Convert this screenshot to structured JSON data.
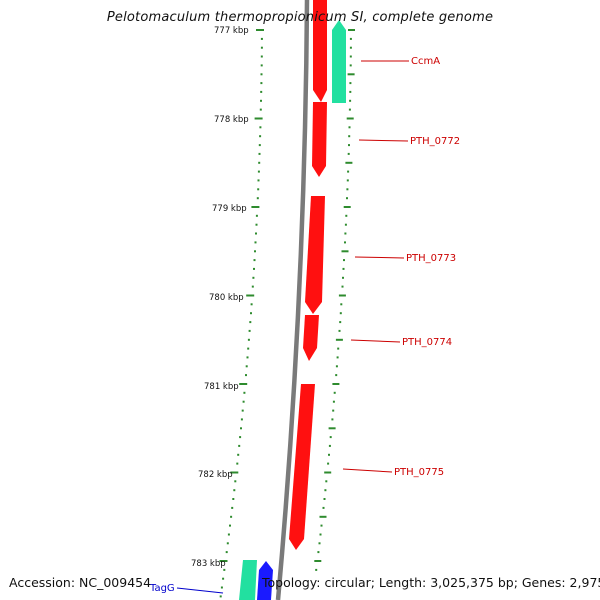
{
  "header": {
    "title": "Pelotomaculum thermopropionicum SI, complete genome"
  },
  "footer": {
    "accession": "Accession: NC_009454",
    "summary": "Topology: circular; Length: 3,025,375 bp; Genes: 2,975"
  },
  "colors": {
    "backbone": "#7a7a7a",
    "tick": "#2e8b2e",
    "forward_gene": "#ff1010",
    "label_red": "#cc0000",
    "label_blue": "#0000cc",
    "teal_gene": "#22e0a0",
    "blue_gene": "#1a1aff"
  },
  "scale": {
    "unit": "kbp",
    "labels": [
      "777 kbp",
      "778 kbp",
      "779 kbp",
      "780 kbp",
      "781 kbp",
      "782 kbp",
      "783 kbp"
    ]
  },
  "genes": [
    {
      "name": "CcmA",
      "strand": "reverse",
      "color": "teal"
    },
    {
      "name": "PTH_0772",
      "strand": "forward",
      "color": "red"
    },
    {
      "name": "PTH_0773",
      "strand": "forward",
      "color": "red"
    },
    {
      "name": "PTH_0774",
      "strand": "forward",
      "color": "red"
    },
    {
      "name": "PTH_0775",
      "strand": "forward",
      "color": "red"
    },
    {
      "name": "TagG",
      "strand": "reverse",
      "color": "blue"
    }
  ]
}
